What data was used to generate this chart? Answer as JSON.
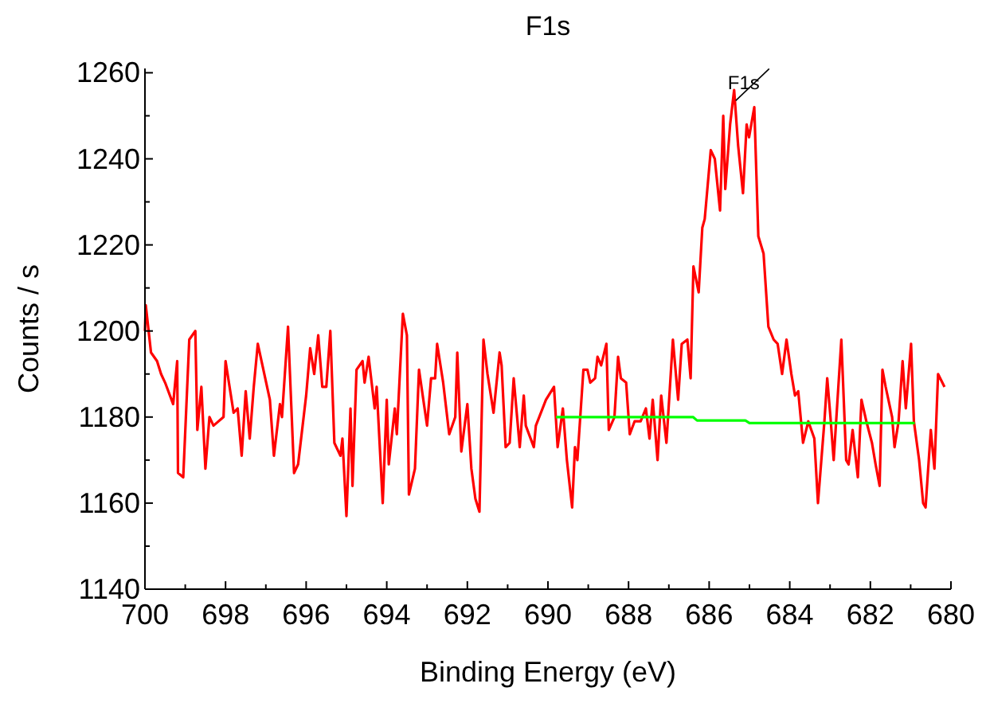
{
  "chart_data": {
    "type": "line",
    "title": "F1s",
    "xlabel": "Binding Energy (eV)",
    "ylabel": "Counts / s",
    "xlim": [
      700,
      680
    ],
    "xticks": [
      700,
      {
        "value": 699,
        "label": null
      },
      698,
      {
        "value": 697,
        "label": null
      },
      696,
      {
        "value": 695,
        "label": null
      },
      694,
      {
        "value": 693,
        "label": null
      },
      692,
      {
        "value": 691,
        "label": null
      },
      690,
      {
        "value": 689,
        "label": null
      },
      688,
      {
        "value": 687,
        "label": null
      },
      686,
      {
        "value": 685,
        "label": null
      },
      684,
      {
        "value": 683,
        "label": null
      },
      682,
      {
        "value": 681,
        "label": null
      },
      680
    ],
    "ylim": [
      1140,
      1261
    ],
    "yticks": [
      1140,
      {
        "value": 1150,
        "label": null
      },
      1160,
      {
        "value": 1170,
        "label": null
      },
      1180,
      {
        "value": 1190,
        "label": null
      },
      1200,
      {
        "value": 1210,
        "label": null
      },
      1220,
      {
        "value": 1230,
        "label": null
      },
      1240,
      {
        "value": 1250,
        "label": null
      },
      1260
    ],
    "grid": false,
    "marker": "none",
    "line_style": "solid",
    "annotations": [
      {
        "text": "F1s",
        "x": 685.38,
        "y": 1255
      }
    ],
    "series": [
      {
        "color": "#ff0000",
        "x": [
          700,
          699.98,
          699.85,
          699.7,
          699.6,
          699.5,
          699.3,
          699.2,
          699.18,
          699.05,
          698.9,
          698.75,
          698.7,
          698.6,
          698.5,
          698.4,
          698.3,
          698.05,
          698,
          697.9,
          697.8,
          697.7,
          697.6,
          697.5,
          697.4,
          697.3,
          697.2,
          696.9,
          696.8,
          696.65,
          696.6,
          696.45,
          696.3,
          696.2,
          696,
          695.9,
          695.8,
          695.7,
          695.6,
          695.5,
          695.4,
          695.3,
          695.15,
          695.1,
          695,
          694.9,
          694.85,
          694.75,
          694.6,
          694.55,
          694.45,
          694.3,
          694.25,
          694.1,
          694,
          693.95,
          693.8,
          693.75,
          693.6,
          693.5,
          693.45,
          693.3,
          693.2,
          693,
          692.9,
          692.8,
          692.75,
          692.6,
          692.45,
          692.3,
          692.25,
          692.15,
          692,
          691.9,
          691.8,
          691.7,
          691.6,
          691.5,
          691.35,
          691.2,
          691.15,
          691.05,
          690.95,
          690.85,
          690.7,
          690.6,
          690.55,
          690.35,
          690.3,
          690.05,
          689.85,
          689.76,
          689.63,
          689.53,
          689.4,
          689.33,
          689.27,
          689.12,
          689.02,
          688.95,
          688.83,
          688.77,
          688.68,
          688.55,
          688.49,
          688.35,
          688.26,
          688.19,
          688.06,
          687.97,
          687.85,
          687.7,
          687.57,
          687.48,
          687.4,
          687.28,
          687.19,
          687.06,
          686.9,
          686.77,
          686.68,
          686.54,
          686.46,
          686.39,
          686.26,
          686.17,
          686.11,
          685.96,
          685.86,
          685.73,
          685.65,
          685.6,
          685.48,
          685.38,
          685.28,
          685.16,
          685.07,
          685.01,
          684.88,
          684.78,
          684.65,
          684.53,
          684.4,
          684.3,
          684.19,
          684.08,
          683.96,
          683.87,
          683.79,
          683.67,
          683.54,
          683.39,
          683.3,
          683.14,
          683.07,
          682.99,
          682.91,
          682.72,
          682.6,
          682.54,
          682.44,
          682.31,
          682.22,
          682.1,
          681.96,
          681.87,
          681.77,
          681.7,
          681.62,
          681.46,
          681.4,
          681.3,
          681.2,
          681.12,
          680.99,
          680.92,
          680.79,
          680.69,
          680.63,
          680.5,
          680.41,
          680.32,
          680.16
        ],
        "values": [
          1200,
          1206,
          1195,
          1193,
          1190,
          1188,
          1183,
          1193,
          1167,
          1166,
          1198,
          1200,
          1177,
          1187,
          1168,
          1180,
          1178,
          1180,
          1193,
          1187,
          1181,
          1182,
          1171,
          1186,
          1175,
          1187,
          1197,
          1184,
          1171,
          1183,
          1180,
          1201,
          1167,
          1169,
          1185,
          1196,
          1190,
          1199,
          1187,
          1187,
          1200,
          1174,
          1171,
          1175,
          1157,
          1182,
          1164,
          1191,
          1193,
          1188,
          1194,
          1182,
          1187,
          1160,
          1184,
          1169,
          1182,
          1176,
          1204,
          1199,
          1162,
          1168,
          1191,
          1178,
          1189,
          1189,
          1197,
          1188,
          1176,
          1180,
          1195,
          1172,
          1183,
          1168,
          1161,
          1158,
          1198,
          1190,
          1181,
          1195,
          1192,
          1173,
          1174,
          1189,
          1173,
          1185,
          1178,
          1173,
          1178,
          1184,
          1187,
          1173,
          1182,
          1170,
          1159,
          1173,
          1170,
          1191,
          1191,
          1188,
          1189,
          1194,
          1192,
          1197,
          1177,
          1180,
          1194,
          1189,
          1188,
          1176,
          1179,
          1179,
          1182,
          1175,
          1184,
          1170,
          1185,
          1174,
          1198,
          1184,
          1197,
          1198,
          1189,
          1215,
          1209,
          1224,
          1226,
          1242,
          1240,
          1228,
          1250,
          1233,
          1248,
          1256,
          1243,
          1232,
          1248,
          1245,
          1252,
          1222,
          1218,
          1201,
          1198,
          1197,
          1190,
          1198,
          1190,
          1185,
          1186,
          1174,
          1179,
          1175,
          1160,
          1179,
          1189,
          1180,
          1170,
          1198,
          1170,
          1169,
          1177,
          1166,
          1184,
          1179,
          1174,
          1169,
          1164,
          1191,
          1187,
          1180,
          1173,
          1179,
          1193,
          1182,
          1197,
          1179,
          1170,
          1160,
          1159,
          1177,
          1168,
          1190,
          1187
        ]
      },
      {
        "color": "#00ff00",
        "x": [
          689.8,
          686.4,
          686.3,
          685.1,
          685,
          680.9
        ],
        "values": [
          1180,
          1180,
          1179.2,
          1179.2,
          1178.6,
          1178.6
        ]
      }
    ]
  }
}
